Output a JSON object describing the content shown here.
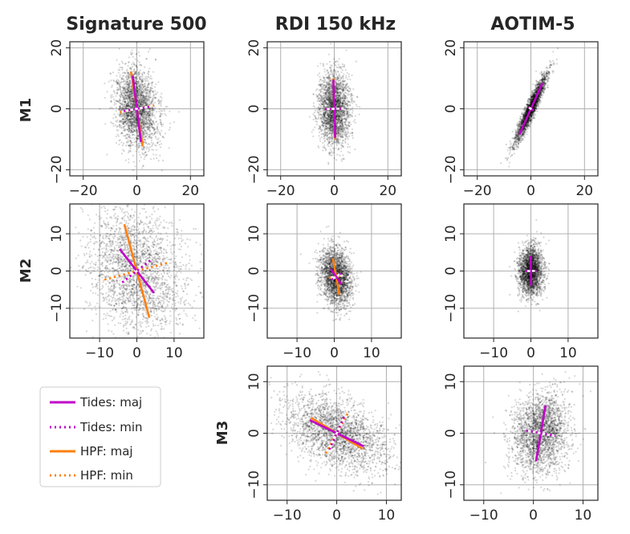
{
  "figure": {
    "columns": [
      "Signature 500",
      "RDI 150 kHz",
      "AOTIM-5"
    ],
    "rows": [
      "M1",
      "M2",
      "M3"
    ]
  },
  "colors": {
    "tides": "#c000c8",
    "hpf": "#ff7f0e",
    "scatter": "#000000",
    "grid": "#b0b0b0"
  },
  "legend": {
    "items": [
      {
        "label": "Tides: maj",
        "color": "#c000c8",
        "style": "solid"
      },
      {
        "label": "Tides: min",
        "color": "#c000c8",
        "style": "dotted"
      },
      {
        "label": "HPF: maj",
        "color": "#ff7f0e",
        "style": "solid"
      },
      {
        "label": "HPF: min",
        "color": "#ff7f0e",
        "style": "dotted"
      }
    ]
  },
  "chart_data": [
    {
      "type": "scatter",
      "column": "Signature 500",
      "row": "M1",
      "xlim": [
        -25,
        25
      ],
      "ylim": [
        -22,
        22
      ],
      "xticks": [
        -20,
        0,
        20
      ],
      "yticks": [
        -20,
        0,
        20
      ],
      "grid": true,
      "cloud": {
        "cx": 0,
        "cy": 0,
        "sd_major": 6.5,
        "sd_minor": 3.8,
        "angle_deg": 100
      },
      "tides": {
        "major": {
          "half_length": 11.0,
          "angle_deg": 98
        },
        "minor": {
          "half_length": 5.0,
          "angle_deg": 8
        }
      },
      "hpf": {
        "major": {
          "half_length": 12.5,
          "angle_deg": 100
        },
        "minor": {
          "half_length": 6.5,
          "angle_deg": 10
        }
      }
    },
    {
      "type": "scatter",
      "column": "RDI 150 kHz",
      "row": "M1",
      "xlim": [
        -25,
        25
      ],
      "ylim": [
        -22,
        22
      ],
      "xticks": [
        -20,
        0,
        20
      ],
      "yticks": [
        -20,
        0,
        20
      ],
      "grid": true,
      "cloud": {
        "cx": 0,
        "cy": 0,
        "sd_major": 6.0,
        "sd_minor": 2.8,
        "angle_deg": 91
      },
      "tides": {
        "major": {
          "half_length": 9.5,
          "angle_deg": 92
        },
        "minor": {
          "half_length": 3.5,
          "angle_deg": 2
        }
      },
      "hpf": {
        "major": {
          "half_length": 10.0,
          "angle_deg": 92
        },
        "minor": {
          "half_length": 3.5,
          "angle_deg": 2
        }
      }
    },
    {
      "type": "scatter",
      "column": "AOTIM-5",
      "row": "M1",
      "xlim": [
        -25,
        25
      ],
      "ylim": [
        -22,
        22
      ],
      "xticks": [
        -20,
        0,
        20
      ],
      "yticks": [
        -20,
        0,
        20
      ],
      "grid": true,
      "cloud": {
        "cx": 0,
        "cy": 0,
        "sd_major": 6.2,
        "sd_minor": 0.9,
        "angle_deg": 63
      },
      "tides": {
        "major": {
          "half_length": 9.5,
          "angle_deg": 63
        },
        "minor": {
          "half_length": 1.0,
          "angle_deg": 153
        }
      },
      "hpf": null
    },
    {
      "type": "scatter",
      "column": "Signature 500",
      "row": "M2",
      "xlim": [
        -18,
        18
      ],
      "ylim": [
        -18,
        18
      ],
      "xticks": [
        -10,
        0,
        10
      ],
      "yticks": [
        -10,
        0,
        10
      ],
      "grid": true,
      "cloud": {
        "cx": 0,
        "cy": 0,
        "sd_major": 8.5,
        "sd_minor": 6.0,
        "angle_deg": 110
      },
      "tides": {
        "major": {
          "half_length": 7.5,
          "angle_deg": 128
        },
        "minor": {
          "half_length": 5.0,
          "angle_deg": 38
        }
      },
      "hpf": {
        "major": {
          "half_length": 13.0,
          "angle_deg": 105
        },
        "minor": {
          "half_length": 9.0,
          "angle_deg": 15
        }
      }
    },
    {
      "type": "scatter",
      "column": "RDI 150 kHz",
      "row": "M2",
      "xlim": [
        -18,
        18
      ],
      "ylim": [
        -18,
        18
      ],
      "xticks": [
        -10,
        0,
        10
      ],
      "yticks": [
        -10,
        0,
        10
      ],
      "grid": true,
      "cloud": {
        "cx": 0.5,
        "cy": -1.5,
        "sd_major": 3.8,
        "sd_minor": 2.0,
        "angle_deg": 98
      },
      "tides": {
        "major": {
          "half_length": 2.5,
          "angle_deg": 125
        },
        "minor": {
          "half_length": 1.5,
          "angle_deg": 35
        }
      },
      "hpf": {
        "major": {
          "half_length": 5.0,
          "angle_deg": 100
        },
        "minor": {
          "half_length": 2.0,
          "angle_deg": 10
        }
      }
    },
    {
      "type": "scatter",
      "column": "AOTIM-5",
      "row": "M2",
      "xlim": [
        -18,
        18
      ],
      "ylim": [
        -18,
        18
      ],
      "xticks": [
        -10,
        0,
        10
      ],
      "yticks": [
        -10,
        0,
        10
      ],
      "grid": true,
      "cloud": {
        "cx": 0,
        "cy": 0,
        "sd_major": 3.2,
        "sd_minor": 1.6,
        "angle_deg": 90
      },
      "tides": {
        "major": {
          "half_length": 4.0,
          "angle_deg": 91
        },
        "minor": {
          "half_length": 1.5,
          "angle_deg": 1
        }
      },
      "hpf": null
    },
    {
      "type": "scatter",
      "column": "RDI 150 kHz",
      "row": "M3",
      "xlim": [
        -14,
        13
      ],
      "ylim": [
        -13,
        13
      ],
      "xticks": [
        -10,
        0,
        10
      ],
      "yticks": [
        -10,
        0,
        10
      ],
      "grid": true,
      "cloud": {
        "cx": 0,
        "cy": 0,
        "sd_major": 5.5,
        "sd_minor": 3.0,
        "angle_deg": -27
      },
      "tides": {
        "major": {
          "half_length": 6.0,
          "angle_deg": -25
        },
        "minor": {
          "half_length": 3.5,
          "angle_deg": 65
        }
      },
      "hpf": {
        "major": {
          "half_length": 6.0,
          "angle_deg": -30
        },
        "minor": {
          "half_length": 4.5,
          "angle_deg": 60
        }
      }
    },
    {
      "type": "scatter",
      "column": "AOTIM-5",
      "row": "M3",
      "xlim": [
        -14,
        13
      ],
      "ylim": [
        -13,
        13
      ],
      "xticks": [
        -10,
        0,
        10
      ],
      "yticks": [
        -10,
        0,
        10
      ],
      "grid": true,
      "cloud": {
        "cx": 1.5,
        "cy": 0,
        "sd_major": 3.8,
        "sd_minor": 2.8,
        "angle_deg": 80
      },
      "tides": {
        "major": {
          "half_length": 5.5,
          "angle_deg": 80
        },
        "minor": {
          "half_length": 3.0,
          "angle_deg": -10
        }
      },
      "hpf": null
    }
  ]
}
